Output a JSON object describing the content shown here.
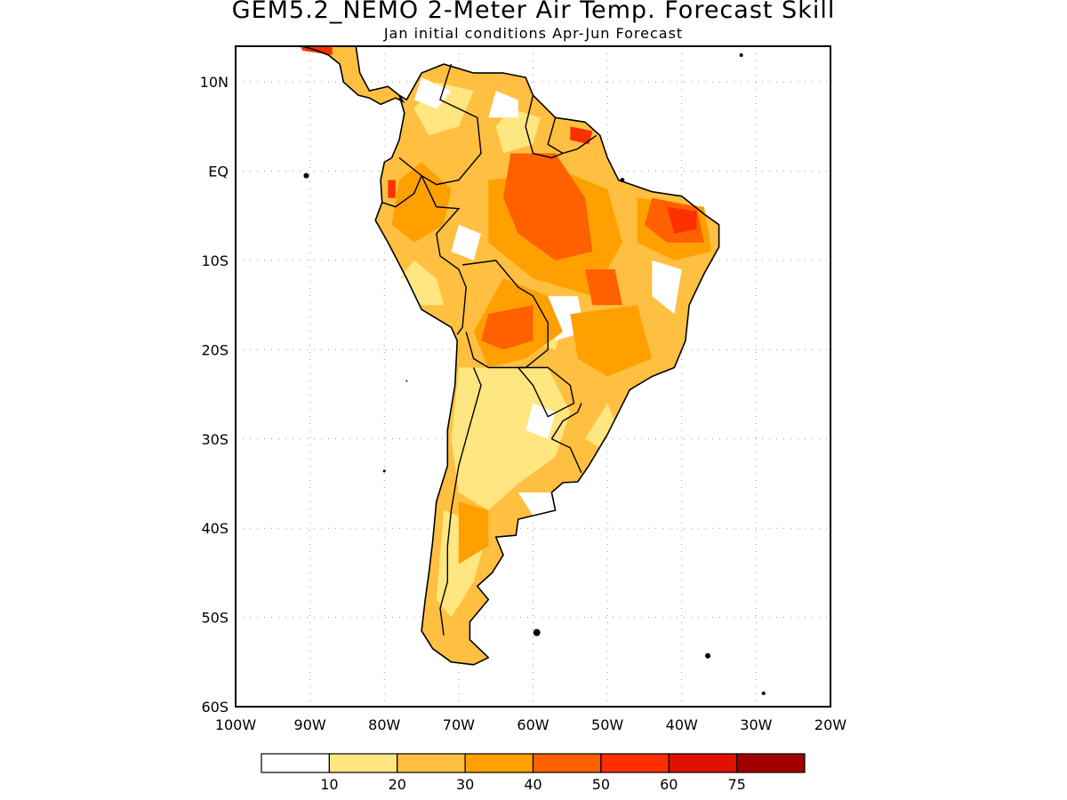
{
  "header": {
    "title": "GEM5.2_NEMO 2-Meter Air Temp. Forecast Skill",
    "subtitle": "Jan initial conditions  Apr-Jun Forecast"
  },
  "map": {
    "lon_range": [
      -100,
      -20
    ],
    "lat_range": [
      -60,
      14
    ],
    "lat_ticks": [
      {
        "value": 10,
        "label": "10N"
      },
      {
        "value": 0,
        "label": "EQ"
      },
      {
        "value": -10,
        "label": "10S"
      },
      {
        "value": -20,
        "label": "20S"
      },
      {
        "value": -30,
        "label": "30S"
      },
      {
        "value": -40,
        "label": "40S"
      },
      {
        "value": -50,
        "label": "50S"
      },
      {
        "value": -60,
        "label": "60S"
      }
    ],
    "lon_ticks": [
      {
        "value": -100,
        "label": "100W"
      },
      {
        "value": -90,
        "label": "90W"
      },
      {
        "value": -80,
        "label": "80W"
      },
      {
        "value": -70,
        "label": "70W"
      },
      {
        "value": -60,
        "label": "60W"
      },
      {
        "value": -50,
        "label": "50W"
      },
      {
        "value": -40,
        "label": "40W"
      },
      {
        "value": -30,
        "label": "30W"
      },
      {
        "value": -20,
        "label": "20W"
      }
    ],
    "grid": true,
    "skill_regions": [
      {
        "lon": [
          [
            -74,
            -60
          ],
          [
            -73,
            -54
          ],
          [
            -66,
            -52
          ],
          [
            -60,
            -51
          ],
          [
            -54,
            -52
          ],
          [
            -52,
            -46
          ],
          [
            -47,
            -42
          ],
          [
            -52,
            -41
          ],
          [
            -58,
            -38
          ],
          [
            -62,
            -39
          ],
          [
            -66,
            -42
          ],
          [
            -65,
            -46
          ],
          [
            -68,
            -50
          ],
          [
            -69,
            -52
          ],
          [
            -72,
            -54
          ],
          [
            -74,
            -56
          ],
          [
            -73,
            -50
          ],
          [
            -73,
            -44
          ],
          [
            -72,
            -38
          ],
          [
            -71,
            -33
          ],
          [
            -71,
            -27
          ],
          [
            -70,
            -21
          ],
          [
            -69,
            -17
          ],
          [
            -73,
            -16
          ],
          [
            -76,
            -15
          ],
          [
            -79,
            -10
          ],
          [
            -81,
            -6
          ],
          [
            -81,
            -2
          ],
          [
            -80,
            2
          ],
          [
            -78,
            5
          ],
          [
            -77,
            8
          ],
          [
            -75,
            11
          ],
          [
            -72,
            12
          ],
          [
            -68,
            11
          ],
          [
            -64,
            11
          ],
          [
            -60,
            10
          ],
          [
            -57,
            6
          ],
          [
            -53,
            5
          ],
          [
            -50,
            2
          ],
          [
            -48,
            -1
          ],
          [
            -44,
            -2
          ],
          [
            -40,
            -3
          ],
          [
            -36,
            -5
          ],
          [
            -35,
            -8
          ],
          [
            -36,
            -12
          ],
          [
            -38,
            -16
          ],
          [
            -39,
            -20
          ],
          [
            -42,
            -22
          ],
          [
            -47,
            -24
          ],
          [
            -50,
            -28
          ],
          [
            -53,
            -33
          ],
          [
            -55,
            -35
          ]
        ],
        "level": 1
      }
    ],
    "colors": {
      "coast": "#000000",
      "white": "#ffffff",
      "c10": "#ffe680",
      "c20": "#ffbf40",
      "c30": "#ffa000",
      "c40": "#ff6000",
      "c50": "#ff3000",
      "c60": "#e01000",
      "c75": "#a00000"
    }
  },
  "colorbar": {
    "labels": [
      "10",
      "20",
      "30",
      "40",
      "50",
      "60",
      "75"
    ],
    "colors": [
      "#ffffff",
      "#ffe680",
      "#ffbf40",
      "#ffa000",
      "#ff6000",
      "#ff3000",
      "#e01000",
      "#a00000"
    ]
  }
}
